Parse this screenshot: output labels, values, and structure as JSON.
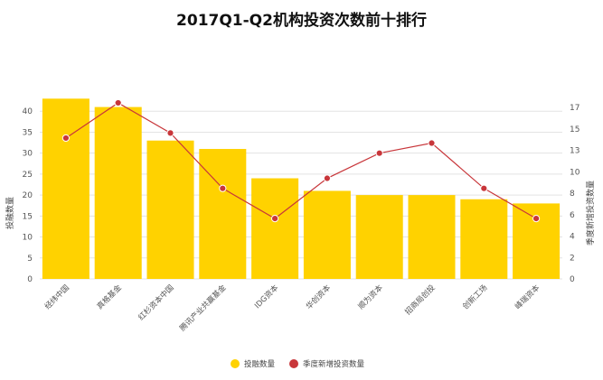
{
  "chart_data": {
    "type": "bar",
    "title": "2017Q1-Q2机构投资次数前十排行",
    "categories": [
      "经纬中国",
      "真格基金",
      "红杉资本中国",
      "腾讯产业共赢基金",
      "IDG资本",
      "华创资本",
      "顺为资本",
      "招商局创投",
      "创新工场",
      "峰瑞资本"
    ],
    "series": [
      {
        "name": "投融数量",
        "axis": "left",
        "type": "bar",
        "values": [
          43,
          41,
          33,
          31,
          24,
          21,
          20,
          20,
          19,
          18
        ]
      },
      {
        "name": "季度新增投资数量",
        "axis": "right",
        "type": "line",
        "values": [
          14,
          17.5,
          14.5,
          9,
          6,
          10,
          12.5,
          13.5,
          9,
          6
        ]
      }
    ],
    "ylabel": "投融数量",
    "y2label": "季度新增投资数量",
    "ylim": [
      0,
      45
    ],
    "y2lim": [
      0,
      18.75
    ],
    "yticks": [
      0,
      5,
      10,
      15,
      20,
      25,
      30,
      35,
      40
    ],
    "y2ticks": [
      0,
      2,
      4,
      6,
      8,
      10,
      13,
      15,
      17
    ],
    "legend_position": "bottom",
    "bar_color": "#FFD200",
    "line_color": "#C8363A"
  }
}
